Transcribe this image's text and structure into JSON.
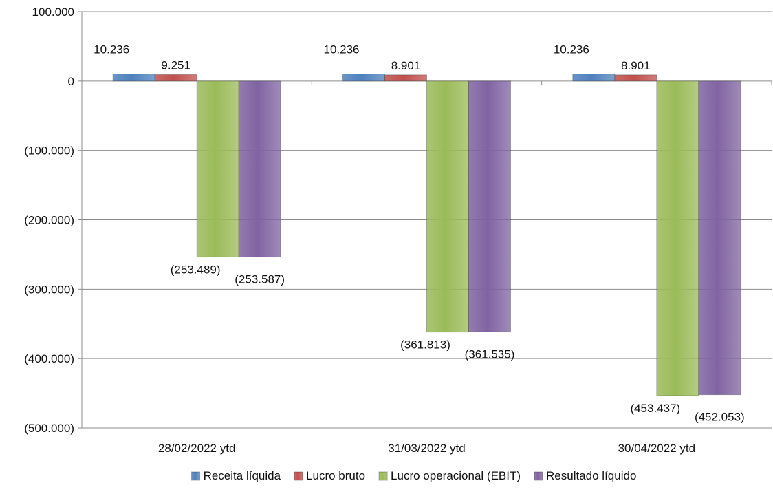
{
  "chart_data": {
    "type": "bar",
    "title": "",
    "xlabel": "",
    "ylabel": "",
    "ylim": [
      -500000,
      100000
    ],
    "yticks": [
      100000,
      0,
      -100000,
      -200000,
      -300000,
      -400000,
      -500000
    ],
    "ytick_labels": [
      "100.000",
      "0",
      "(100.000)",
      "(200.000)",
      "(300.000)",
      "(400.000)",
      "(500.000)"
    ],
    "grid": true,
    "legend_position": "bottom",
    "categories": [
      "28/02/2022 ytd",
      "31/03/2022 ytd",
      "30/04/2022 ytd"
    ],
    "series": [
      {
        "name": "Receita líquida",
        "color": "#4f81bd",
        "values": [
          10236,
          10236,
          10236
        ],
        "labels": [
          "10.236",
          "10.236",
          "10.236"
        ]
      },
      {
        "name": "Lucro bruto",
        "color": "#c0504d",
        "values": [
          9251,
          8901,
          8901
        ],
        "labels": [
          "9.251",
          "8.901",
          "8.901"
        ]
      },
      {
        "name": "Lucro operacional (EBIT)",
        "color": "#9bbb59",
        "values": [
          -253489,
          -361813,
          -453437
        ],
        "labels": [
          "(253.489)",
          "(361.813)",
          "(453.437)"
        ]
      },
      {
        "name": "Resultado líquido",
        "color": "#8064a2",
        "values": [
          -253587,
          -361535,
          -452053
        ],
        "labels": [
          "(253.587)",
          "(361.535)",
          "(452.053)"
        ]
      }
    ]
  }
}
